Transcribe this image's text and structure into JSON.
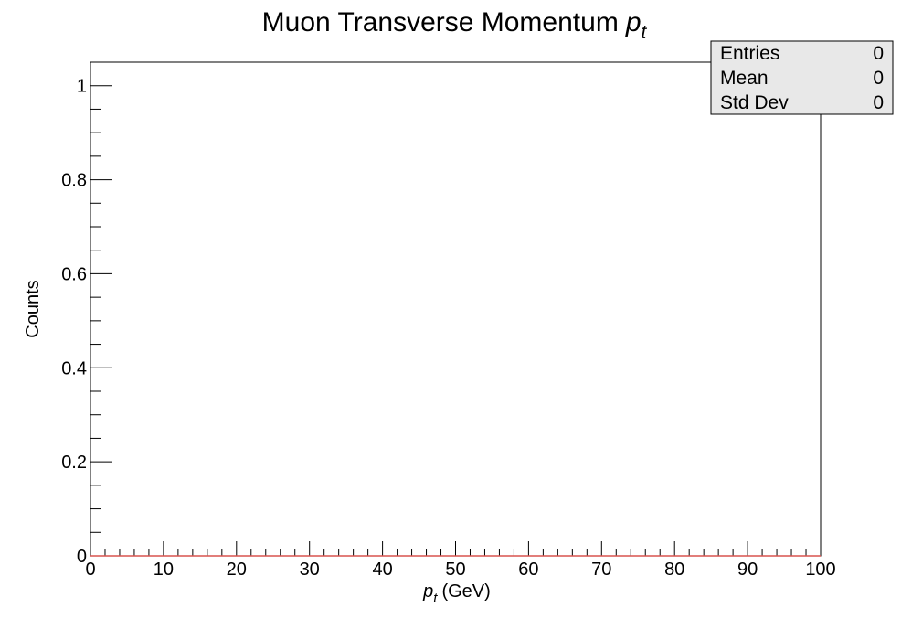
{
  "chart_data": {
    "type": "bar",
    "title": "Muon Transverse Momentum",
    "title_symbol": "p",
    "title_symbol_sub": "t",
    "xlabel_symbol": "p",
    "xlabel_symbol_sub": "t",
    "xlabel_unit": "(GeV)",
    "ylabel": "Counts",
    "xlim": [
      0,
      100
    ],
    "ylim": [
      0,
      1.05
    ],
    "x_major_ticks": [
      0,
      10,
      20,
      30,
      40,
      50,
      60,
      70,
      80,
      90,
      100
    ],
    "x_tick_labels": [
      "0",
      "10",
      "20",
      "30",
      "40",
      "50",
      "60",
      "70",
      "80",
      "90",
      "100"
    ],
    "y_major_ticks": [
      0,
      0.2,
      0.4,
      0.6,
      0.8,
      1
    ],
    "y_tick_labels": [
      "0",
      "0.2",
      "0.4",
      "0.6",
      "0.8",
      "1"
    ],
    "grid": false,
    "line_color": "#d9534f",
    "series": [
      {
        "values": []
      }
    ],
    "stats_box": {
      "position": "top-right",
      "rows": [
        {
          "label": "Entries",
          "value": "0"
        },
        {
          "label": "Mean",
          "value": "0"
        },
        {
          "label": "Std Dev",
          "value": "0"
        }
      ],
      "background": "#e8e8e8"
    }
  }
}
